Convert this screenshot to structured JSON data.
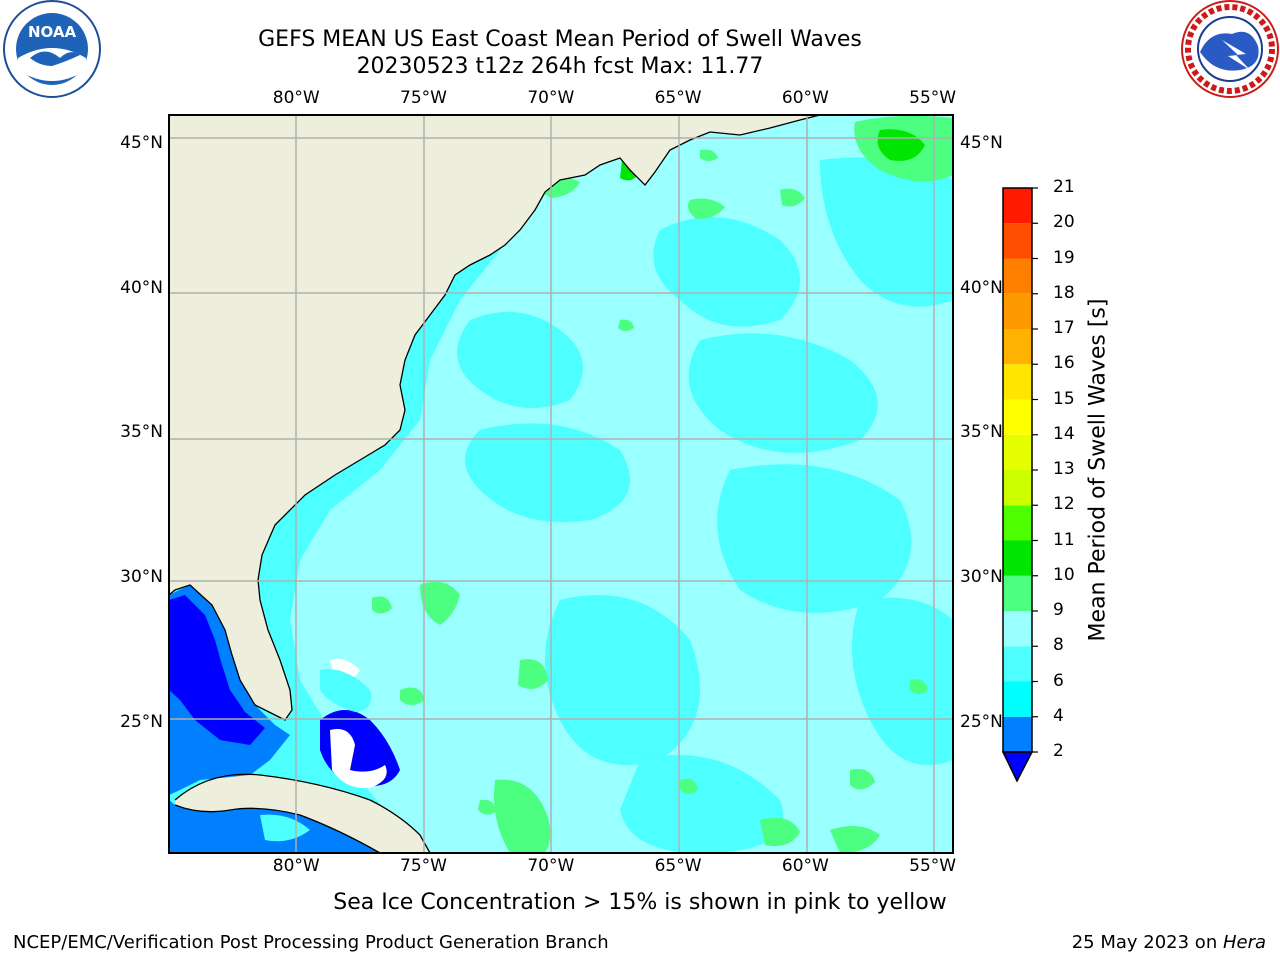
{
  "header": {
    "title_line1": "GEFS MEAN US East Coast Mean Period of Swell Waves",
    "title_line2": "20230523 t12z 264h fcst   Max: 11.77"
  },
  "logos": {
    "left": {
      "icon": "noaa-logo",
      "text": "NOAA",
      "ring_text": "NATIONAL OCEANIC AND ATMOSPHERIC ADMINISTRATION · U.S. DEPARTMENT OF COMMERCE"
    },
    "right": {
      "icon": "nws-logo",
      "ring_text": "NATIONAL WEATHER SERVICE"
    }
  },
  "map": {
    "lon_ticks": [
      "80°W",
      "75°W",
      "70°W",
      "65°W",
      "60°W",
      "55°W"
    ],
    "lat_ticks": [
      "45°N",
      "40°N",
      "35°N",
      "30°N",
      "25°N"
    ],
    "lon_values": [
      -80,
      -75,
      -70,
      -65,
      -60,
      -55
    ],
    "lat_values": [
      45,
      40,
      35,
      30,
      25
    ],
    "lon_range": [
      -85,
      -54.2
    ],
    "lat_range": [
      20.5,
      46
    ],
    "max_value": 11.77,
    "colors": {
      "land": "#eeeedd",
      "gridline": "#b0b0b0",
      "coastline": "#000000",
      "ocean_dominant": "#99ffff",
      "ocean_secondary": "#4dffff",
      "shelf_deep": "#0000ff",
      "shelf_mid": "#0080ff",
      "patch_green": "#4dff80",
      "patch_bright_green": "#00e600",
      "no_data": "#ffffff"
    }
  },
  "colorbar": {
    "label": "Mean Period of Swell Waves [s]",
    "ticks": [
      "21",
      "20",
      "19",
      "18",
      "17",
      "16",
      "15",
      "14",
      "13",
      "12",
      "11",
      "10",
      "9",
      "8",
      "6",
      "4",
      "2"
    ],
    "levels": [
      {
        "from": 2,
        "to": 4,
        "color": "#0080ff"
      },
      {
        "from": 4,
        "to": 6,
        "color": "#00ffff"
      },
      {
        "from": 6,
        "to": 8,
        "color": "#4dffff"
      },
      {
        "from": 8,
        "to": 9,
        "color": "#99ffff"
      },
      {
        "from": 9,
        "to": 10,
        "color": "#4dff80"
      },
      {
        "from": 10,
        "to": 11,
        "color": "#00e600"
      },
      {
        "from": 11,
        "to": 12,
        "color": "#4dff00"
      },
      {
        "from": 12,
        "to": 13,
        "color": "#ccff00"
      },
      {
        "from": 13,
        "to": 14,
        "color": "#e6ff00"
      },
      {
        "from": 14,
        "to": 15,
        "color": "#ffff00"
      },
      {
        "from": 15,
        "to": 16,
        "color": "#ffe600"
      },
      {
        "from": 16,
        "to": 17,
        "color": "#ffb300"
      },
      {
        "from": 17,
        "to": 18,
        "color": "#ff9900"
      },
      {
        "from": 18,
        "to": 19,
        "color": "#ff8000"
      },
      {
        "from": 19,
        "to": 20,
        "color": "#ff4d00"
      },
      {
        "from": 20,
        "to": 21,
        "color": "#ff1a00"
      }
    ],
    "under_color": "#0000ff"
  },
  "caption": "Sea Ice Concentration > 15% is shown in pink to yellow",
  "footer": {
    "left": "NCEP/EMC/Verification Post Processing Product Generation Branch",
    "date": "25 May 2023 on ",
    "machine": "Hera"
  }
}
